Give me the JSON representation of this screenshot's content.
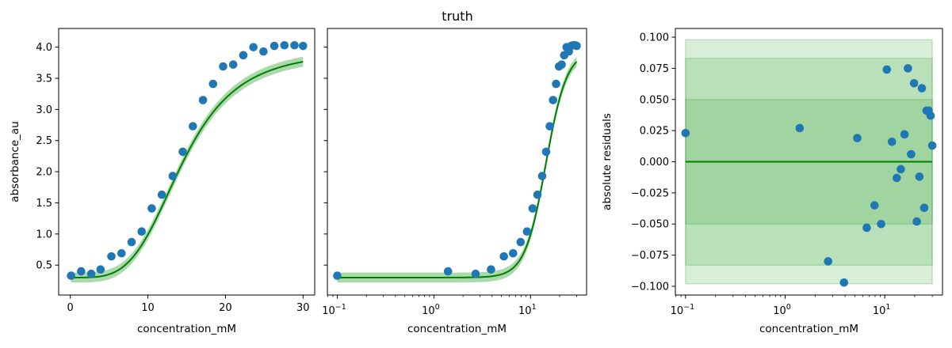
{
  "title": "truth",
  "colors": {
    "data": "#1f77b4",
    "fit": "#008000",
    "band": "#2ca02c"
  },
  "chart_data": [
    {
      "type": "scatter",
      "xscale": "linear",
      "xlabel": "concentration_mM",
      "ylabel": "absorbance_au",
      "xlim": [
        -1.5,
        31.5
      ],
      "ylim": [
        0.02,
        4.3
      ],
      "xticks": [
        0,
        10,
        20,
        30
      ],
      "xtick_labels": [
        "0",
        "10",
        "20",
        "30"
      ],
      "yticks": [
        0.5,
        1.0,
        1.5,
        2.0,
        2.5,
        3.0,
        3.5,
        4.0
      ],
      "ytick_labels": [
        "0.5",
        "1.0",
        "1.5",
        "2.0",
        "2.5",
        "3.0",
        "3.5",
        "4.0"
      ],
      "series": [
        {
          "kind": "points",
          "x": [
            0.1,
            1.4,
            2.7,
            3.9,
            5.3,
            6.6,
            7.9,
            9.2,
            10.5,
            11.8,
            13.2,
            14.5,
            15.8,
            17.1,
            18.4,
            19.7,
            21.0,
            22.3,
            23.6,
            24.9,
            26.3,
            27.6,
            28.9,
            30.0
          ],
          "y": [
            0.33,
            0.4,
            0.36,
            0.43,
            0.64,
            0.69,
            0.87,
            1.04,
            1.41,
            1.63,
            1.93,
            2.32,
            2.73,
            3.15,
            3.41,
            3.69,
            3.72,
            3.87,
            4.0,
            3.93,
            4.02,
            4.03,
            4.03,
            4.02
          ]
        },
        {
          "kind": "fit_line",
          "min": 0.3,
          "max": 3.95,
          "x50": 14.4,
          "hill": 4.0
        },
        {
          "kind": "bands",
          "half_widths": [
            0.05,
            0.083,
            0.098
          ]
        }
      ]
    },
    {
      "type": "scatter",
      "xscale": "log",
      "xlabel": "concentration_mM",
      "ylabel": "",
      "xlim": [
        0.079,
        38
      ],
      "ylim": [
        0.02,
        4.3
      ],
      "xticks": [
        0.1,
        1,
        10
      ],
      "xtick_labels": [
        "10−1",
        "100",
        "101"
      ],
      "yticks": [
        0.5,
        1.0,
        1.5,
        2.0,
        2.5,
        3.0,
        3.5,
        4.0
      ],
      "series": [
        {
          "kind": "points",
          "x": [
            0.1,
            1.4,
            2.7,
            3.9,
            5.3,
            6.6,
            7.9,
            9.2,
            10.5,
            11.8,
            13.2,
            14.5,
            15.8,
            17.1,
            18.4,
            19.7,
            21.0,
            22.3,
            23.6,
            24.9,
            26.3,
            27.6,
            28.9,
            30.0
          ],
          "y": [
            0.33,
            0.4,
            0.36,
            0.43,
            0.64,
            0.69,
            0.87,
            1.04,
            1.41,
            1.63,
            1.93,
            2.32,
            2.73,
            3.15,
            3.41,
            3.69,
            3.72,
            3.87,
            4.0,
            3.93,
            4.02,
            4.03,
            4.03,
            4.02
          ]
        },
        {
          "kind": "fit_line",
          "min": 0.3,
          "max": 3.95,
          "x50": 14.4,
          "hill": 4.0
        },
        {
          "kind": "bands",
          "half_widths": [
            0.05,
            0.083,
            0.098
          ]
        }
      ]
    },
    {
      "type": "scatter",
      "xscale": "log",
      "xlabel": "concentration_mM",
      "ylabel": "absolute residuals",
      "xlim": [
        0.079,
        38
      ],
      "ylim": [
        -0.107,
        0.107
      ],
      "xticks": [
        0.1,
        1,
        10
      ],
      "xtick_labels": [
        "10−1",
        "100",
        "101"
      ],
      "yticks": [
        -0.1,
        -0.075,
        -0.05,
        -0.025,
        0.0,
        0.025,
        0.05,
        0.075,
        0.1
      ],
      "ytick_labels": [
        "−0.100",
        "−0.075",
        "−0.050",
        "−0.025",
        "0.000",
        "0.025",
        "0.050",
        "0.075",
        "0.100"
      ],
      "series": [
        {
          "kind": "points",
          "x": [
            0.1,
            1.4,
            2.7,
            3.9,
            5.3,
            6.6,
            7.9,
            9.2,
            10.5,
            11.8,
            13.2,
            14.5,
            15.8,
            17.1,
            18.4,
            19.7,
            21.0,
            22.3,
            23.6,
            24.9,
            26.3,
            27.6,
            28.9,
            30.0
          ],
          "y": [
            0.023,
            0.027,
            -0.08,
            -0.097,
            0.019,
            -0.053,
            -0.035,
            -0.05,
            0.074,
            0.016,
            -0.013,
            -0.006,
            0.022,
            0.075,
            0.006,
            0.063,
            -0.048,
            -0.012,
            0.059,
            -0.037,
            0.041,
            0.041,
            0.037,
            0.013
          ]
        },
        {
          "kind": "zero_line",
          "y": 0.0
        },
        {
          "kind": "bands",
          "half_widths": [
            0.05,
            0.083,
            0.098
          ]
        }
      ]
    }
  ]
}
